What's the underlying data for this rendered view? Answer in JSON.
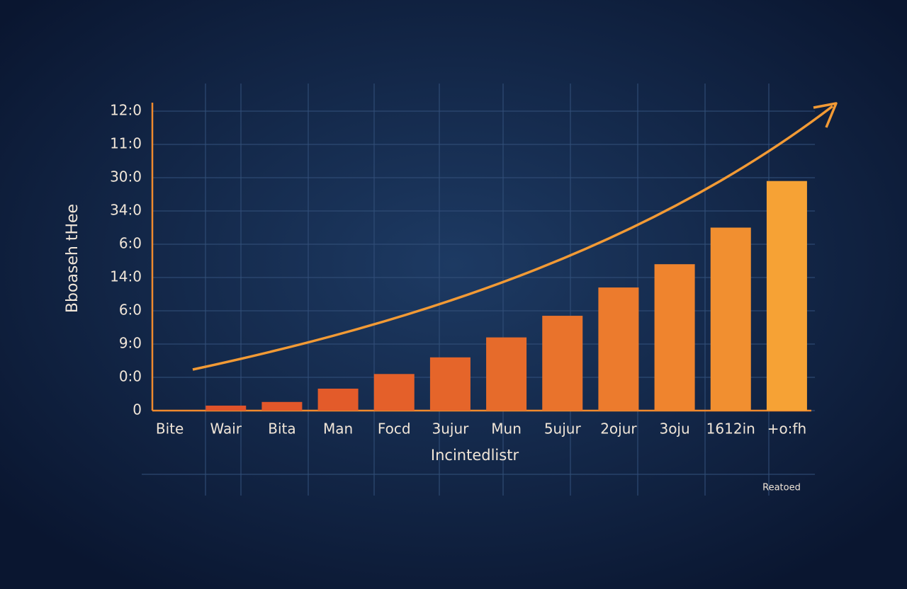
{
  "chart_data": {
    "type": "bar",
    "y_label": "Bboaseh tHee",
    "x_label": "Incintedlistr",
    "note": "Reatoed",
    "categories": [
      "Bite",
      "Wair",
      "Bita",
      "Man",
      "Focd",
      "3ujur",
      "Mun",
      "5ujur",
      "2ojur",
      "3oju",
      "1612in",
      "+o:fh"
    ],
    "values": [
      0,
      0.15,
      0.26,
      0.66,
      1.1,
      1.6,
      2.2,
      2.85,
      3.7,
      4.4,
      5.5,
      6.9
    ],
    "colors": [
      "#e0532a",
      "#e0532a",
      "#e2572a",
      "#e35b2a",
      "#e4602a",
      "#e5652a",
      "#e66b2b",
      "#e9732c",
      "#ec7b2d",
      "#ef842e",
      "#f18f30",
      "#f6a235"
    ],
    "ylim": [
      0,
      9.2
    ],
    "yticks": [
      {
        "value": 0,
        "label": "0"
      },
      {
        "value": 1,
        "label": "0:0"
      },
      {
        "value": 2,
        "label": "9:0"
      },
      {
        "value": 3,
        "label": "6:0"
      },
      {
        "value": 4,
        "label": "14:0"
      },
      {
        "value": 5,
        "label": "6:0"
      },
      {
        "value": 6,
        "label": "34:0"
      },
      {
        "value": 7,
        "label": "30:0"
      },
      {
        "value": 8,
        "label": "11:0"
      },
      {
        "value": 9,
        "label": "12:0"
      }
    ],
    "grid": true
  }
}
